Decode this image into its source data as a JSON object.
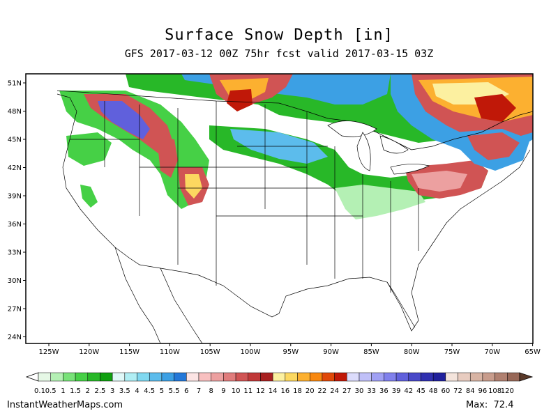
{
  "header": {
    "title": "Surface Snow Depth [in]",
    "subtitle": "GFS 2017-03-12 00Z 75hr fcst valid 2017-03-15 03Z"
  },
  "map": {
    "lat_labels": [
      "51N",
      "48N",
      "45N",
      "42N",
      "39N",
      "36N",
      "33N",
      "30N",
      "27N",
      "24N"
    ],
    "lon_labels": [
      "125W",
      "120W",
      "115W",
      "110W",
      "105W",
      "100W",
      "95W",
      "90W",
      "85W",
      "80W",
      "75W",
      "70W",
      "65W"
    ]
  },
  "colorbar": {
    "labels": [
      "0.1",
      "0.5",
      "1",
      "1.5",
      "2",
      "2.5",
      "3",
      "3.5",
      "4",
      "4.5",
      "5",
      "5.5",
      "6",
      "7",
      "8",
      "9",
      "10",
      "11",
      "12",
      "14",
      "16",
      "18",
      "20",
      "22",
      "24",
      "27",
      "30",
      "33",
      "36",
      "39",
      "42",
      "45",
      "48",
      "60",
      "72",
      "84",
      "96",
      "108",
      "120"
    ],
    "colors": [
      "#e6f8e6",
      "#b4f0b4",
      "#78e278",
      "#46d046",
      "#28b828",
      "#10a010",
      "#e0f8f8",
      "#b0eef4",
      "#80d8f0",
      "#5cbcec",
      "#3ca0e4",
      "#2478d8",
      "#fce4e4",
      "#f8c0c0",
      "#eca0a0",
      "#e07c7c",
      "#d05454",
      "#c03838",
      "#a82020",
      "#fcf0a0",
      "#fcd860",
      "#fcb030",
      "#f88810",
      "#e04808",
      "#c01808",
      "#dcdcfc",
      "#c0c0f8",
      "#a0a0f4",
      "#8080ec",
      "#6060dc",
      "#4848c8",
      "#3030b0",
      "#20209c",
      "#f4e4dc",
      "#e8ccc0",
      "#d8b4a4",
      "#c89c8c",
      "#b08070",
      "#986858"
    ]
  },
  "footer": {
    "site": "InstantWeatherMaps.com",
    "max_label": "Max:",
    "max_value": "72.4"
  }
}
